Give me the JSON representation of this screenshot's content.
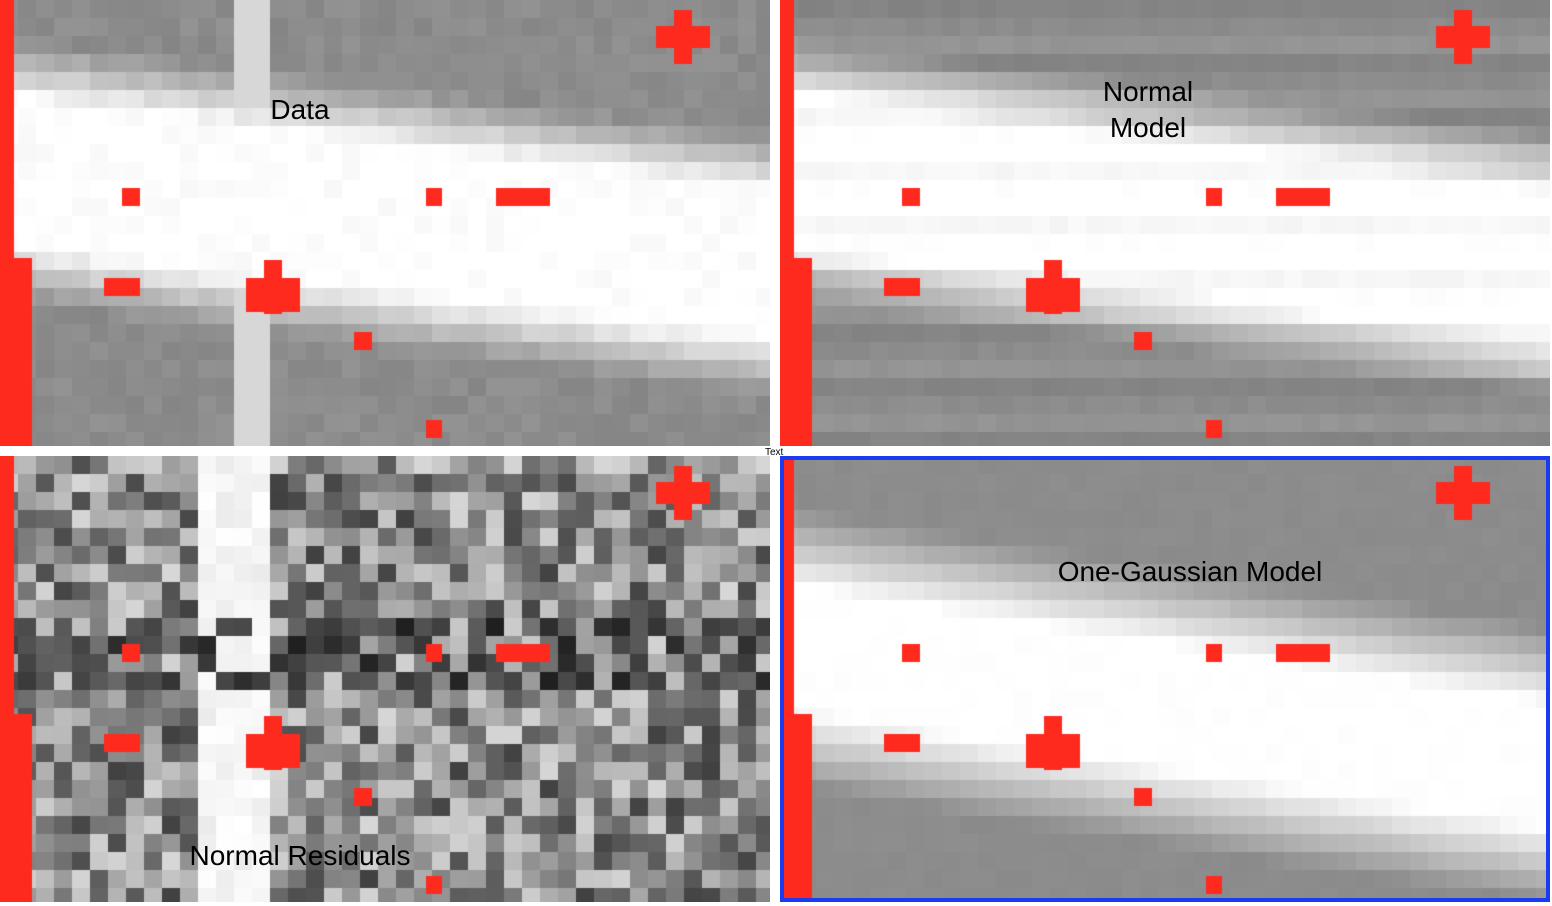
{
  "panels": [
    {
      "id": "data",
      "label": "Data",
      "variant": "data"
    },
    {
      "id": "normal-model",
      "label": "Normal\nModel",
      "variant": "smooth"
    },
    {
      "id": "residuals",
      "label": "Normal Residuals",
      "variant": "residual"
    },
    {
      "id": "gauss",
      "label": "One-Gaussian Model",
      "variant": "gauss",
      "selected": true
    }
  ],
  "divider_text": "Text",
  "colors": {
    "mask_red": "#ff2a1e",
    "selection_blue": "#1a3cf0",
    "background_gray": "#8c8c8c"
  }
}
